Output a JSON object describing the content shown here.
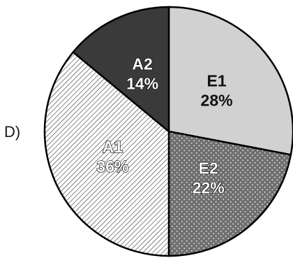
{
  "option_label": "D)",
  "chart_data": {
    "type": "pie",
    "title": "",
    "slices": [
      {
        "label": "E1",
        "value": 28,
        "value_label": "28%",
        "fill": "#d1d1d1",
        "pattern": "solid-light",
        "text_color": "#111111"
      },
      {
        "label": "E2",
        "value": 22,
        "value_label": "22%",
        "fill": "#6f6f6f",
        "pattern": "dots",
        "text_color": "#ffffff"
      },
      {
        "label": "A1",
        "value": 36,
        "value_label": "36%",
        "fill": "#ffffff",
        "pattern": "diagonal-hatch",
        "text_color": "#ffffff"
      },
      {
        "label": "A2",
        "value": 14,
        "value_label": "14%",
        "fill": "#3a3a3a",
        "pattern": "solid-dark",
        "text_color": "#ffffff"
      }
    ],
    "start_direction": "12 o'clock",
    "direction": "clockwise",
    "legend": "none"
  }
}
